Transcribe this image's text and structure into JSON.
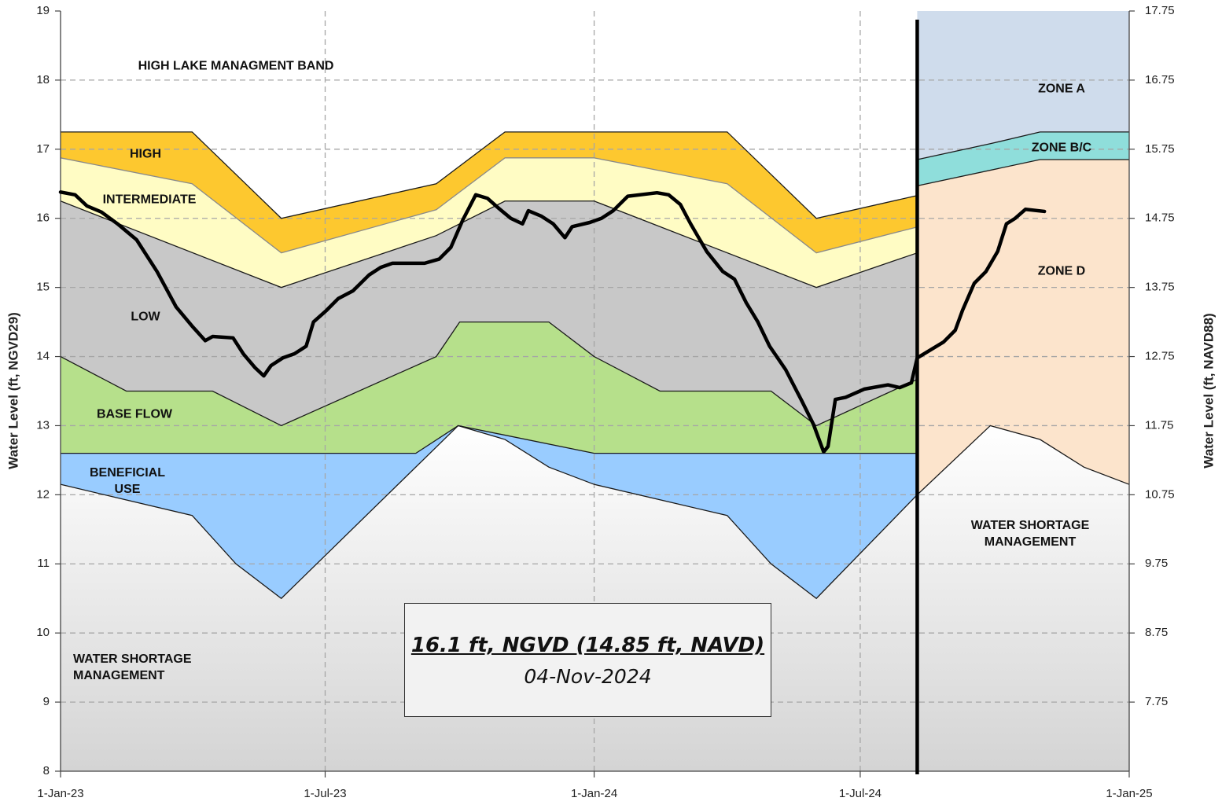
{
  "chart_data": {
    "type": "line",
    "y_title": "Water Level (ft, NGVD29)",
    "y2_title": "Water Level (ft, NAVD88)",
    "xlim": [
      "2023-01-01",
      "2025-01-01"
    ],
    "xticks": [
      {
        "value": "2023-01-01",
        "label": "1-Jan-23"
      },
      {
        "value": "2023-07-01",
        "label": "1-Jul-23"
      },
      {
        "value": "2024-01-01",
        "label": "1-Jan-24"
      },
      {
        "value": "2024-07-01",
        "label": "1-Jul-24"
      },
      {
        "value": "2025-01-01",
        "label": "1-Jan-25"
      }
    ],
    "ylim": [
      8,
      19
    ],
    "yticks": [
      8,
      9,
      10,
      11,
      12,
      13,
      14,
      15,
      16,
      17,
      18,
      19
    ],
    "y2lim": [
      6.75,
      17.75
    ],
    "y2ticks": [
      7.75,
      8.75,
      9.75,
      10.75,
      11.75,
      12.75,
      13.75,
      14.75,
      15.75,
      16.75,
      17.75
    ],
    "grid": true,
    "divider": "2024-08-09",
    "sections": [
      {
        "bands": [
          {
            "name": "HIGH LAKE MANAGMENT BAND",
            "color": "#ffffff",
            "x": [
              "2023-01-01",
              "2024-08-09"
            ],
            "values": [
              19,
              19
            ]
          },
          {
            "name": "HIGH",
            "color": "#fdc82f",
            "x": [
              "2023-01-01",
              "2023-04-01",
              "2023-06-01",
              "2023-09-15",
              "2023-11-01",
              "2024-01-01",
              "2024-04-01",
              "2024-06-01",
              "2024-08-09"
            ],
            "values": [
              17.25,
              17.25,
              16,
              16.5,
              17.25,
              17.25,
              17.25,
              16,
              16.33
            ]
          },
          {
            "name": "INTERMEDIATE",
            "color": "#fffcc4",
            "x": [
              "2023-01-01",
              "2023-04-01",
              "2023-06-01",
              "2023-09-15",
              "2023-11-01",
              "2024-01-01",
              "2024-04-01",
              "2024-06-01",
              "2024-08-09"
            ],
            "values": [
              16.875,
              16.5,
              15.5,
              16.125,
              16.875,
              16.875,
              16.5,
              15.5,
              15.875
            ]
          },
          {
            "name": "LOW",
            "color": "#c8c8c8",
            "x": [
              "2023-01-01",
              "2023-06-01",
              "2023-09-15",
              "2023-11-01",
              "2024-01-01",
              "2024-06-01",
              "2024-08-09"
            ],
            "values": [
              16.25,
              15,
              15.75,
              16.25,
              16.25,
              15,
              15.5
            ]
          },
          {
            "name": "BASE FLOW",
            "color": "#b6e08b",
            "x": [
              "2023-01-01",
              "2023-02-15",
              "2023-04-15",
              "2023-06-01",
              "2023-09-15",
              "2023-10-01",
              "2023-12-01",
              "2024-01-01",
              "2024-02-15",
              "2024-05-01",
              "2024-06-01",
              "2024-08-09"
            ],
            "values": [
              14,
              13.5,
              13.5,
              13,
              14,
              14.5,
              14.5,
              14,
              13.5,
              13.5,
              13,
              13.67
            ]
          },
          {
            "name": "BENEFICIAL USE",
            "color": "#99ccff",
            "x": [
              "2023-01-01",
              "2023-09-01",
              "2023-09-30",
              "2024-01-01",
              "2024-08-09"
            ],
            "values": [
              12.6,
              12.6,
              13,
              12.6,
              12.6
            ]
          },
          {
            "name": "WATER SHORTAGE MANAGEMENT",
            "color": "#d4d4d4",
            "gradient": true,
            "x": [
              "2023-01-01",
              "2023-04-01",
              "2023-05-01",
              "2023-06-01",
              "2023-09-30",
              "2023-11-01",
              "2023-12-01",
              "2024-01-01",
              "2024-04-01",
              "2024-05-01",
              "2024-06-01",
              "2024-08-09"
            ],
            "values": [
              12.15,
              11.7,
              11,
              10.5,
              13,
              12.8,
              12.4,
              12.15,
              11.7,
              11,
              10.5,
              12
            ]
          }
        ]
      },
      {
        "bands": [
          {
            "name": "ZONE A",
            "color": "#cfdcec",
            "x": [
              "2024-08-09",
              "2025-01-01"
            ],
            "values": [
              19,
              19
            ]
          },
          {
            "name": "ZONE B/C",
            "color": "#8fdedb",
            "x": [
              "2024-08-09",
              "2024-09-28",
              "2024-11-01",
              "2025-01-01"
            ],
            "values": [
              16.85,
              17.08,
              17.25,
              17.25
            ]
          },
          {
            "name": "ZONE D",
            "color": "#fce4cc",
            "x": [
              "2024-08-09",
              "2024-11-01",
              "2025-01-01"
            ],
            "values": [
              16.47,
              16.85,
              16.85
            ]
          },
          {
            "name": "WATER SHORTAGE MANAGEMENT",
            "color": "#d4d4d4",
            "gradient": true,
            "x": [
              "2024-08-09",
              "2024-09-28",
              "2024-11-01",
              "2024-12-01",
              "2025-01-01"
            ],
            "values": [
              12,
              13,
              12.8,
              12.4,
              12.15
            ]
          }
        ]
      }
    ],
    "series": [
      {
        "color": "#000000",
        "x": [
          "2023-01-01",
          "2023-01-11",
          "2023-01-19",
          "2023-01-29",
          "2023-02-09",
          "2023-02-22",
          "2023-03-08",
          "2023-03-21",
          "2023-04-01",
          "2023-04-10",
          "2023-04-15",
          "2023-04-29",
          "2023-05-06",
          "2023-05-14",
          "2023-05-20",
          "2023-05-25",
          "2023-06-02",
          "2023-06-10",
          "2023-06-18",
          "2023-06-23",
          "2023-07-02",
          "2023-07-10",
          "2023-07-20",
          "2023-07-31",
          "2023-08-08",
          "2023-08-16",
          "2023-09-07",
          "2023-09-17",
          "2023-09-25",
          "2023-10-03",
          "2023-10-12",
          "2023-10-20",
          "2023-10-28",
          "2023-11-05",
          "2023-11-13",
          "2023-11-17",
          "2023-11-26",
          "2023-12-04",
          "2023-12-12",
          "2023-12-17",
          "2023-12-29",
          "2024-01-06",
          "2024-01-14",
          "2024-01-24",
          "2024-02-13",
          "2024-02-21",
          "2024-02-29",
          "2024-03-07",
          "2024-03-18",
          "2024-03-29",
          "2024-04-06",
          "2024-04-14",
          "2024-04-22",
          "2024-04-30",
          "2024-05-11",
          "2024-05-22",
          "2024-05-30",
          "2024-06-06",
          "2024-06-09",
          "2024-06-14",
          "2024-06-21",
          "2024-07-04",
          "2024-07-20",
          "2024-07-28",
          "2024-08-05",
          "2024-08-09",
          "2024-08-16",
          "2024-08-27",
          "2024-09-04",
          "2024-09-09",
          "2024-09-17",
          "2024-09-25",
          "2024-10-03",
          "2024-10-09",
          "2024-10-15",
          "2024-10-22",
          "2024-11-04"
        ],
        "values": [
          16.38,
          16.34,
          16.18,
          16.09,
          15.92,
          15.69,
          15.23,
          14.72,
          14.44,
          14.23,
          14.29,
          14.27,
          14.04,
          13.84,
          13.72,
          13.87,
          13.98,
          14.04,
          14.15,
          14.5,
          14.67,
          14.84,
          14.95,
          15.18,
          15.29,
          15.35,
          15.35,
          15.41,
          15.58,
          15.97,
          16.34,
          16.29,
          16.14,
          16.0,
          15.92,
          16.11,
          16.03,
          15.92,
          15.72,
          15.88,
          15.94,
          16.0,
          16.11,
          16.32,
          16.37,
          16.34,
          16.2,
          15.92,
          15.52,
          15.23,
          15.12,
          14.78,
          14.5,
          14.15,
          13.81,
          13.36,
          13.02,
          12.62,
          12.7,
          13.38,
          13.41,
          13.53,
          13.59,
          13.55,
          13.62,
          13.98,
          14.07,
          14.21,
          14.38,
          14.67,
          15.06,
          15.23,
          15.52,
          15.92,
          16.0,
          16.13,
          16.1
        ]
      }
    ],
    "annotation": {
      "text": "16.1 ft, NGVD (14.85 ft, NAVD)",
      "date": "04-Nov-2024"
    }
  }
}
